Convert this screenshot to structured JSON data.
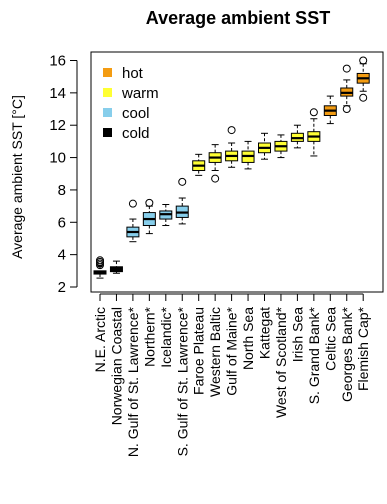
{
  "chart_data": {
    "type": "box",
    "title": "Average ambient SST",
    "ylabel": "Average ambient SST [°C]",
    "ylim": [
      2,
      16
    ],
    "yticks": [
      2,
      4,
      6,
      8,
      10,
      12,
      14,
      16
    ],
    "grid": false,
    "legend": {
      "placement": "top-left",
      "entries": [
        {
          "label": "hot",
          "color": "#F39C12"
        },
        {
          "label": "warm",
          "color": "#FFFF33"
        },
        {
          "label": "cool",
          "color": "#87CEEB"
        },
        {
          "label": "cold",
          "color": "#000000"
        }
      ]
    },
    "boxes": [
      {
        "category": "N.E. Arctic",
        "group": "cold",
        "min": 2.55,
        "q1": 2.8,
        "median": 2.9,
        "q3": 3.0,
        "max": 3.3,
        "outliers": [
          3.35,
          3.45,
          3.55,
          3.65
        ]
      },
      {
        "category": "Norwegian Coastal",
        "group": "cold",
        "min": 2.85,
        "q1": 2.95,
        "median": 3.1,
        "q3": 3.25,
        "max": 3.6,
        "outliers": []
      },
      {
        "category": "N. Gulf of St. Lawrence*",
        "group": "cool",
        "min": 4.8,
        "q1": 5.1,
        "median": 5.4,
        "q3": 5.7,
        "max": 6.2,
        "outliers": [
          7.15
        ]
      },
      {
        "category": "Northern*",
        "group": "cool",
        "min": 5.3,
        "q1": 5.8,
        "median": 6.2,
        "q3": 6.6,
        "max": 7.0,
        "outliers": [
          7.2
        ]
      },
      {
        "category": "Icelandic*",
        "group": "cool",
        "min": 5.8,
        "q1": 6.2,
        "median": 6.5,
        "q3": 6.7,
        "max": 7.1,
        "outliers": []
      },
      {
        "category": "S. Gulf of St. Lawrence*",
        "group": "cool",
        "min": 5.9,
        "q1": 6.3,
        "median": 6.6,
        "q3": 7.0,
        "max": 7.5,
        "outliers": [
          8.5
        ]
      },
      {
        "category": "Faroe Plateau",
        "group": "warm",
        "min": 8.9,
        "q1": 9.2,
        "median": 9.5,
        "q3": 9.8,
        "max": 10.2,
        "outliers": []
      },
      {
        "category": "Western Baltic",
        "group": "warm",
        "min": 9.2,
        "q1": 9.7,
        "median": 10.0,
        "q3": 10.3,
        "max": 10.8,
        "outliers": [
          8.7
        ]
      },
      {
        "category": "Gulf of Maine*",
        "group": "warm",
        "min": 9.4,
        "q1": 9.8,
        "median": 10.1,
        "q3": 10.4,
        "max": 10.9,
        "outliers": [
          11.7
        ]
      },
      {
        "category": "North Sea",
        "group": "warm",
        "min": 9.3,
        "q1": 9.7,
        "median": 10.1,
        "q3": 10.4,
        "max": 11.0,
        "outliers": []
      },
      {
        "category": "Kattegat",
        "group": "warm",
        "min": 9.9,
        "q1": 10.3,
        "median": 10.6,
        "q3": 10.9,
        "max": 11.5,
        "outliers": []
      },
      {
        "category": "West of Scotland*",
        "group": "warm",
        "min": 10.0,
        "q1": 10.4,
        "median": 10.7,
        "q3": 11.0,
        "max": 11.4,
        "outliers": []
      },
      {
        "category": "Irish Sea",
        "group": "warm",
        "min": 10.6,
        "q1": 11.0,
        "median": 11.2,
        "q3": 11.5,
        "max": 12.0,
        "outliers": []
      },
      {
        "category": "S. Grand Bank*",
        "group": "warm",
        "min": 10.1,
        "q1": 11.0,
        "median": 11.3,
        "q3": 11.6,
        "max": 12.4,
        "outliers": [
          12.8
        ]
      },
      {
        "category": "Celtic Sea",
        "group": "hot",
        "min": 12.1,
        "q1": 12.6,
        "median": 12.9,
        "q3": 13.2,
        "max": 13.8,
        "outliers": []
      },
      {
        "category": "Georges Bank*",
        "group": "hot",
        "min": 13.2,
        "q1": 13.8,
        "median": 14.0,
        "q3": 14.3,
        "max": 14.8,
        "outliers": [
          13.0,
          15.5
        ]
      },
      {
        "category": "Flemish Cap*",
        "group": "hot",
        "min": 14.1,
        "q1": 14.6,
        "median": 14.9,
        "q3": 15.2,
        "max": 15.8,
        "outliers": [
          13.7,
          16.0
        ]
      }
    ]
  }
}
